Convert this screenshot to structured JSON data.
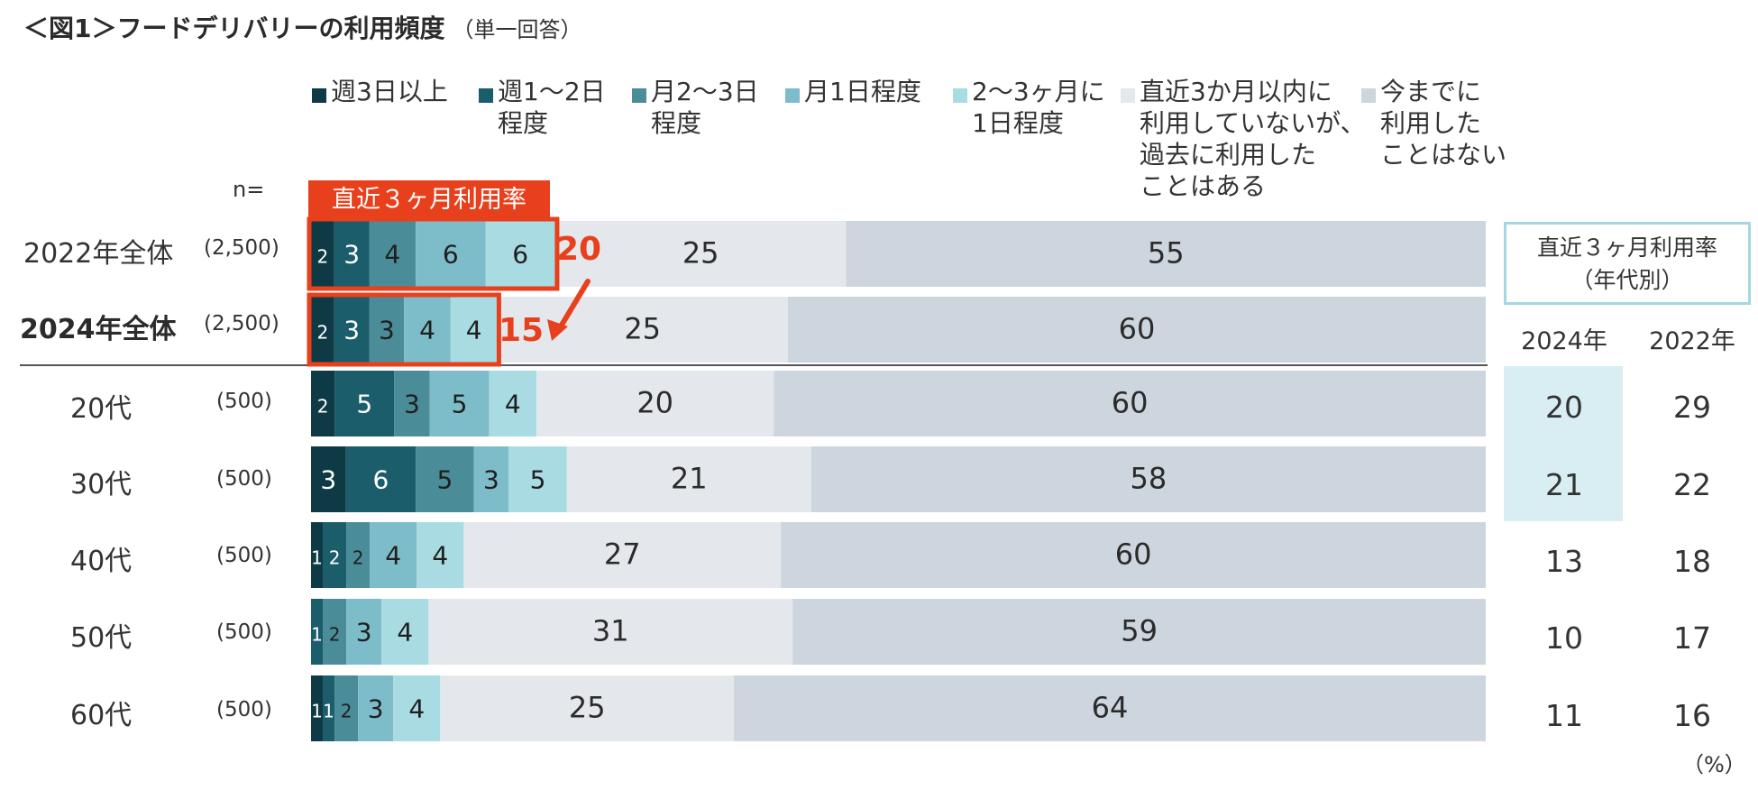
{
  "title": "＜図1＞フードデリバリーの利用頻度",
  "subtitle": "（単一回答）",
  "n_label": "n=",
  "rate_tag": "直近３ヶ月利用率",
  "legend": [
    {
      "label": "週3日以上",
      "color": "#0d3a45"
    },
    {
      "label": "週1～2日\n程度",
      "color": "#1b5d6b"
    },
    {
      "label": "月2～3日\n程度",
      "color": "#4a8c98"
    },
    {
      "label": "月1日程度",
      "color": "#7dbcc9"
    },
    {
      "label": "2～3ヶ月に\n1日程度",
      "color": "#a9dbe3"
    },
    {
      "label": "直近3か月以内に\n利用していないが、\n過去に利用した\nことはある",
      "color": "#e4e8ed"
    },
    {
      "label": "今までに\n利用した\nことはない",
      "color": "#cdd5de"
    }
  ],
  "callouts": {
    "y2022": "20",
    "y2024": "15"
  },
  "chart_data": {
    "type": "bar",
    "orientation": "horizontal",
    "stacked": true,
    "unit": "%",
    "categories": [
      "2022年全体",
      "2024年全体",
      "20代",
      "30代",
      "40代",
      "50代",
      "60代"
    ],
    "n": [
      "(2,500)",
      "(2,500)",
      "(500)",
      "(500)",
      "(500)",
      "(500)",
      "(500)"
    ],
    "series": [
      {
        "name": "週3日以上",
        "values": [
          2,
          2,
          2,
          3,
          1,
          0,
          1
        ]
      },
      {
        "name": "週1～2日程度",
        "values": [
          3,
          3,
          5,
          6,
          2,
          1,
          1
        ]
      },
      {
        "name": "月2～3日程度",
        "values": [
          4,
          3,
          3,
          5,
          2,
          2,
          2
        ]
      },
      {
        "name": "月1日程度",
        "values": [
          6,
          4,
          5,
          3,
          4,
          3,
          3
        ]
      },
      {
        "name": "2～3ヶ月に1日程度",
        "values": [
          6,
          4,
          4,
          5,
          4,
          4,
          4
        ]
      },
      {
        "name": "直近3か月以内に利用していないが、過去に利用したことはある",
        "values": [
          25,
          25,
          20,
          21,
          27,
          31,
          25
        ]
      },
      {
        "name": "今までに利用したことはない",
        "values": [
          55,
          60,
          60,
          58,
          60,
          59,
          64
        ]
      }
    ],
    "xlim": [
      0,
      100
    ]
  },
  "rate_table": {
    "title": "直近３ヶ月利用率\n（年代別）",
    "columns": [
      "2024年",
      "2022年"
    ],
    "rows": [
      {
        "y2024": "20",
        "y2022": "29"
      },
      {
        "y2024": "21",
        "y2022": "22"
      },
      {
        "y2024": "13",
        "y2022": "18"
      },
      {
        "y2024": "10",
        "y2022": "17"
      },
      {
        "y2024": "11",
        "y2022": "16"
      }
    ]
  },
  "percent_note": "（%）"
}
